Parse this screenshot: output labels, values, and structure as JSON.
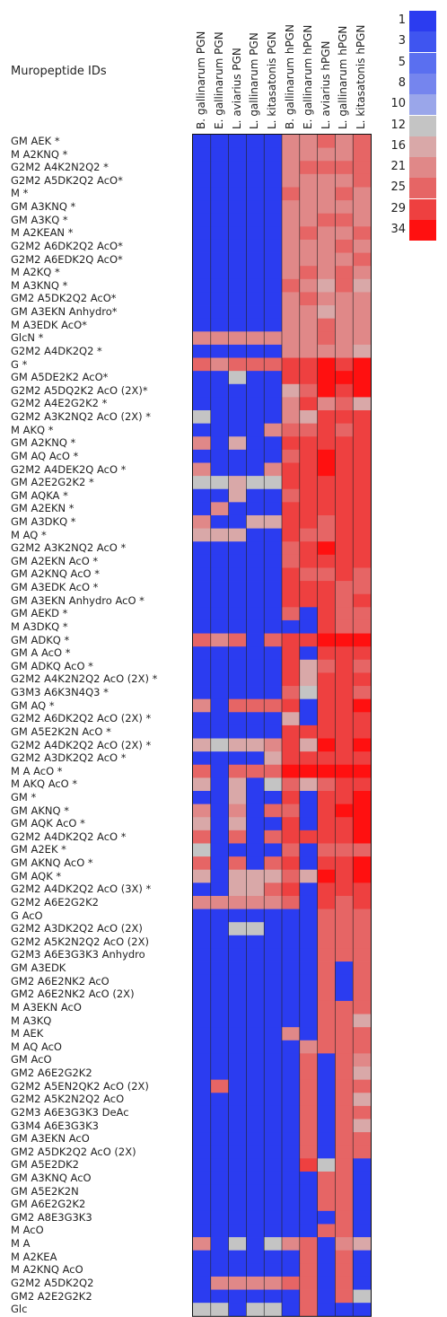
{
  "chart_data": {
    "type": "heatmap",
    "title": "Muropeptide IDs",
    "columns": [
      "B. gallinarum PGN",
      "E. gallinarum PGN",
      "L. aviarius PGN",
      "L. gallinarum PGN",
      "L. kitasatonis PGN",
      "B. gallinarum hPGN",
      "E. gallinarum hPGN",
      "L. aviarius hPGN",
      "L. gallinarum hPGN",
      "L. kitasatonis hPGN"
    ],
    "rows": [
      "GM AEK *",
      "M A2KNQ *",
      "G2M2 A4K2N2Q2 *",
      "G2M2 A5DK2Q2 AcO*",
      "M  *",
      "GM A3KNQ *",
      "GM A3KQ *",
      "M A2KEAN *",
      "G2M2 A6DK2Q2 AcO*",
      "G2M2 A6EDK2Q AcO*",
      "M A2KQ *",
      "M A3KNQ *",
      "GM2 A5DK2Q2 AcO*",
      "GM A3EKN Anhydro*",
      "M A3EDK AcO*",
      "GlcN  *",
      "G2M2 A4DK2Q2 *",
      "G  *",
      "GM A5DE2K2 AcO*",
      "G2M2 A5DQ2K2 AcO (2X)*",
      "G2M2 A4E2G2K2 *",
      "G2M2 A3K2NQ2 AcO (2X) *",
      "M AKQ *",
      "GM A2KNQ *",
      "GM AQ AcO *",
      "G2M2 A4DEK2Q AcO *",
      "GM A2E2G2K2 *",
      "GM AQKA *",
      "GM A2EKN *",
      "GM A3DKQ *",
      "M AQ *",
      "G2M2 A3K2NQ2 AcO *",
      "GM A2EKN AcO *",
      "GM A2KNQ AcO *",
      "GM A3EDK AcO *",
      "GM A3EKN Anhydro AcO *",
      "GM AEKD *",
      "M A3DKQ *",
      "GM ADKQ *",
      "GM A AcO *",
      "GM ADKQ AcO *",
      "G2M2 A4K2N2Q2 AcO (2X) *",
      "G3M3 A6K3N4Q3 *",
      "GM AQ *",
      "G2M2 A6DK2Q2 AcO (2X) *",
      "GM A5E2K2N AcO *",
      "G2M2 A4DK2Q2 AcO (2X) *",
      "G2M2 A3DK2Q2 AcO *",
      "M A AcO *",
      "M AKQ AcO *",
      "GM *",
      "GM AKNQ *",
      "GM AQK AcO *",
      "G2M2 A4DK2Q2 AcO *",
      "GM A2EK *",
      "GM AKNQ AcO *",
      "GM AQK *",
      "G2M2 A4DK2Q2 AcO (3X) *",
      "G2M2 A6E2G2K2",
      "G  AcO",
      "G2M2 A3DK2Q2 AcO (2X)",
      "G2M2 A5K2N2Q2 AcO (2X)",
      "G2M3 A6E3G3K3 Anhydro",
      "GM A3EDK",
      "GM2 A6E2NK2 AcO",
      "GM2 A6E2NK2 AcO (2X)",
      "M A3EKN AcO",
      "M A3KQ",
      "M AEK",
      "M AQ AcO",
      "GM  AcO",
      "GM2 A6E2G2K2",
      "G2M2 A5EN2QK2 AcO (2X)",
      "G2M2 A5K2N2Q2 AcO",
      "G2M3 A6E3G3K3 DeAc",
      "G3M4 A6E3G3K3",
      "GM A3EKN AcO",
      "GM2 A5DK2Q2 AcO (2X)",
      "GM A5E2DK2",
      "GM A3KNQ AcO",
      "GM A5E2K2N",
      "GM A6E2G2K2",
      "GM2 A8E3G3K3",
      "M  AcO",
      "M A",
      "M A2KEA",
      "M A2KNQ AcO",
      "G2M2 A5DK2Q2",
      "GM2 A2E2G2K2",
      "Glc"
    ],
    "values": [
      [
        1,
        2,
        1,
        1,
        2,
        23,
        23,
        25,
        23,
        25
      ],
      [
        1,
        2,
        1,
        1,
        1,
        23,
        21,
        23,
        23,
        25
      ],
      [
        2,
        2,
        1,
        2,
        2,
        23,
        25,
        25,
        25,
        25
      ],
      [
        1,
        1,
        1,
        1,
        1,
        23,
        23,
        21,
        23,
        25
      ],
      [
        1,
        1,
        1,
        1,
        1,
        25,
        23,
        23,
        25,
        21
      ],
      [
        1,
        2,
        1,
        1,
        1,
        23,
        21,
        23,
        23,
        23
      ],
      [
        2,
        1,
        1,
        1,
        1,
        23,
        21,
        25,
        25,
        23
      ],
      [
        1,
        2,
        1,
        1,
        1,
        21,
        25,
        23,
        23,
        25
      ],
      [
        1,
        1,
        1,
        1,
        1,
        23,
        23,
        21,
        25,
        23
      ],
      [
        1,
        1,
        1,
        1,
        1,
        23,
        21,
        21,
        21,
        25
      ],
      [
        2,
        1,
        1,
        1,
        1,
        23,
        25,
        21,
        25,
        23
      ],
      [
        1,
        1,
        1,
        1,
        1,
        25,
        21,
        16,
        25,
        16
      ],
      [
        1,
        1,
        1,
        1,
        1,
        21,
        25,
        21,
        21,
        23
      ],
      [
        1,
        1,
        1,
        1,
        1,
        23,
        23,
        16,
        21,
        23
      ],
      [
        1,
        1,
        1,
        1,
        1,
        23,
        23,
        25,
        23,
        23
      ],
      [
        21,
        21,
        21,
        21,
        21,
        21,
        21,
        25,
        21,
        23
      ],
      [
        1,
        1,
        1,
        1,
        1,
        21,
        23,
        21,
        21,
        16
      ],
      [
        25,
        23,
        25,
        25,
        25,
        29,
        29,
        34,
        29,
        34
      ],
      [
        1,
        1,
        12,
        2,
        1,
        29,
        29,
        34,
        34,
        34
      ],
      [
        1,
        1,
        1,
        1,
        1,
        16,
        25,
        34,
        29,
        34
      ],
      [
        1,
        1,
        1,
        1,
        1,
        23,
        29,
        21,
        25,
        16
      ],
      [
        12,
        1,
        1,
        1,
        1,
        23,
        16,
        29,
        29,
        29
      ],
      [
        1,
        1,
        1,
        1,
        21,
        25,
        25,
        29,
        25,
        29
      ],
      [
        21,
        1,
        16,
        1,
        1,
        29,
        29,
        29,
        29,
        29
      ],
      [
        1,
        1,
        1,
        1,
        1,
        25,
        29,
        34,
        29,
        29
      ],
      [
        21,
        1,
        2,
        1,
        21,
        29,
        29,
        34,
        29,
        29
      ],
      [
        12,
        12,
        16,
        12,
        12,
        29,
        29,
        29,
        29,
        29
      ],
      [
        1,
        1,
        16,
        1,
        1,
        25,
        29,
        29,
        29,
        29
      ],
      [
        1,
        21,
        1,
        1,
        1,
        29,
        29,
        29,
        29,
        29
      ],
      [
        21,
        1,
        1,
        16,
        16,
        29,
        29,
        25,
        29,
        29
      ],
      [
        16,
        16,
        16,
        1,
        1,
        29,
        25,
        25,
        29,
        29
      ],
      [
        1,
        1,
        1,
        1,
        1,
        25,
        29,
        34,
        29,
        29
      ],
      [
        1,
        1,
        1,
        1,
        1,
        25,
        29,
        29,
        29,
        29
      ],
      [
        1,
        1,
        1,
        1,
        1,
        29,
        25,
        25,
        29,
        25
      ],
      [
        1,
        1,
        1,
        1,
        1,
        29,
        29,
        29,
        25,
        25
      ],
      [
        1,
        1,
        1,
        1,
        1,
        29,
        29,
        29,
        25,
        29
      ],
      [
        1,
        1,
        1,
        1,
        1,
        25,
        1,
        29,
        25,
        25
      ],
      [
        1,
        1,
        1,
        1,
        1,
        1,
        1,
        29,
        25,
        25
      ],
      [
        25,
        21,
        25,
        1,
        25,
        29,
        29,
        34,
        34,
        34
      ],
      [
        1,
        1,
        1,
        1,
        1,
        29,
        2,
        29,
        29,
        29
      ],
      [
        1,
        1,
        1,
        1,
        1,
        29,
        16,
        25,
        29,
        25
      ],
      [
        1,
        1,
        1,
        1,
        1,
        29,
        16,
        29,
        29,
        29
      ],
      [
        1,
        1,
        1,
        1,
        1,
        25,
        12,
        29,
        29,
        25
      ],
      [
        21,
        1,
        25,
        25,
        25,
        29,
        1,
        29,
        29,
        34
      ],
      [
        1,
        1,
        1,
        1,
        1,
        16,
        1,
        29,
        29,
        29
      ],
      [
        1,
        1,
        1,
        1,
        1,
        29,
        29,
        29,
        29,
        29
      ],
      [
        16,
        12,
        16,
        16,
        21,
        29,
        16,
        34,
        29,
        34
      ],
      [
        1,
        1,
        1,
        1,
        16,
        29,
        29,
        29,
        29,
        29
      ],
      [
        25,
        2,
        25,
        25,
        25,
        34,
        34,
        34,
        34,
        34
      ],
      [
        16,
        1,
        16,
        1,
        12,
        25,
        16,
        25,
        29,
        29
      ],
      [
        1,
        1,
        16,
        1,
        1,
        29,
        1,
        29,
        29,
        34
      ],
      [
        21,
        1,
        21,
        1,
        25,
        25,
        1,
        29,
        34,
        34
      ],
      [
        16,
        1,
        16,
        1,
        1,
        29,
        2,
        29,
        29,
        34
      ],
      [
        25,
        1,
        25,
        1,
        25,
        29,
        29,
        29,
        29,
        34
      ],
      [
        12,
        1,
        1,
        1,
        1,
        25,
        1,
        25,
        25,
        25
      ],
      [
        25,
        1,
        25,
        1,
        25,
        29,
        1,
        29,
        29,
        34
      ],
      [
        16,
        1,
        16,
        16,
        16,
        25,
        16,
        34,
        29,
        34
      ],
      [
        1,
        1,
        16,
        16,
        25,
        29,
        1,
        29,
        29,
        29
      ],
      [
        21,
        21,
        21,
        21,
        21,
        25,
        1,
        29,
        25,
        29
      ],
      [
        1,
        1,
        1,
        1,
        1,
        1,
        1,
        25,
        25,
        25
      ],
      [
        1,
        1,
        12,
        12,
        1,
        1,
        1,
        25,
        25,
        25
      ],
      [
        1,
        1,
        1,
        1,
        1,
        1,
        1,
        25,
        25,
        25
      ],
      [
        1,
        1,
        1,
        1,
        1,
        1,
        1,
        25,
        25,
        25
      ],
      [
        1,
        1,
        1,
        1,
        1,
        1,
        1,
        25,
        1,
        25
      ],
      [
        1,
        1,
        1,
        1,
        1,
        1,
        1,
        25,
        1,
        25
      ],
      [
        1,
        1,
        1,
        1,
        1,
        1,
        1,
        25,
        1,
        25
      ],
      [
        1,
        1,
        1,
        1,
        1,
        1,
        1,
        25,
        25,
        25
      ],
      [
        1,
        1,
        1,
        1,
        1,
        1,
        1,
        25,
        25,
        16
      ],
      [
        1,
        1,
        1,
        1,
        1,
        21,
        1,
        25,
        25,
        25
      ],
      [
        1,
        1,
        1,
        1,
        1,
        1,
        21,
        25,
        25,
        25
      ],
      [
        1,
        1,
        1,
        1,
        1,
        1,
        25,
        1,
        25,
        21
      ],
      [
        1,
        1,
        1,
        1,
        1,
        1,
        25,
        1,
        25,
        16
      ],
      [
        1,
        25,
        1,
        1,
        1,
        1,
        25,
        1,
        25,
        25
      ],
      [
        1,
        1,
        1,
        1,
        1,
        1,
        25,
        1,
        25,
        16
      ],
      [
        1,
        1,
        1,
        1,
        1,
        1,
        25,
        1,
        25,
        25
      ],
      [
        1,
        1,
        1,
        1,
        1,
        1,
        25,
        1,
        25,
        16
      ],
      [
        1,
        1,
        1,
        1,
        1,
        1,
        25,
        1,
        25,
        25
      ],
      [
        1,
        1,
        1,
        1,
        1,
        1,
        25,
        1,
        25,
        25
      ],
      [
        1,
        1,
        1,
        1,
        1,
        1,
        29,
        12,
        25,
        1
      ],
      [
        1,
        1,
        1,
        1,
        1,
        1,
        1,
        25,
        25,
        1
      ],
      [
        1,
        1,
        1,
        1,
        1,
        1,
        1,
        25,
        25,
        1
      ],
      [
        1,
        1,
        1,
        1,
        1,
        1,
        1,
        25,
        25,
        1
      ],
      [
        1,
        1,
        1,
        1,
        1,
        1,
        1,
        1,
        25,
        1
      ],
      [
        1,
        1,
        1,
        1,
        1,
        1,
        1,
        25,
        25,
        1
      ],
      [
        21,
        1,
        12,
        1,
        12,
        21,
        25,
        1,
        21,
        16
      ],
      [
        1,
        1,
        1,
        1,
        1,
        1,
        25,
        1,
        25,
        1
      ],
      [
        1,
        1,
        1,
        1,
        1,
        1,
        25,
        1,
        25,
        1
      ],
      [
        1,
        21,
        21,
        21,
        21,
        25,
        25,
        1,
        25,
        1
      ],
      [
        1,
        1,
        1,
        1,
        1,
        1,
        25,
        1,
        25,
        12
      ],
      [
        12,
        12,
        1,
        12,
        12,
        1,
        25,
        1,
        1,
        1
      ]
    ],
    "legend": {
      "values": [
        1,
        3,
        5,
        8,
        10,
        12,
        16,
        21,
        25,
        29,
        34
      ],
      "colors": [
        "#2b3cf0",
        "#3f55f0",
        "#5a6ff0",
        "#7585ee",
        "#9aa6ea",
        "#c4c4c4",
        "#d9a8a8",
        "#e08888",
        "#e66565",
        "#ee4040",
        "#ff1010"
      ]
    }
  }
}
